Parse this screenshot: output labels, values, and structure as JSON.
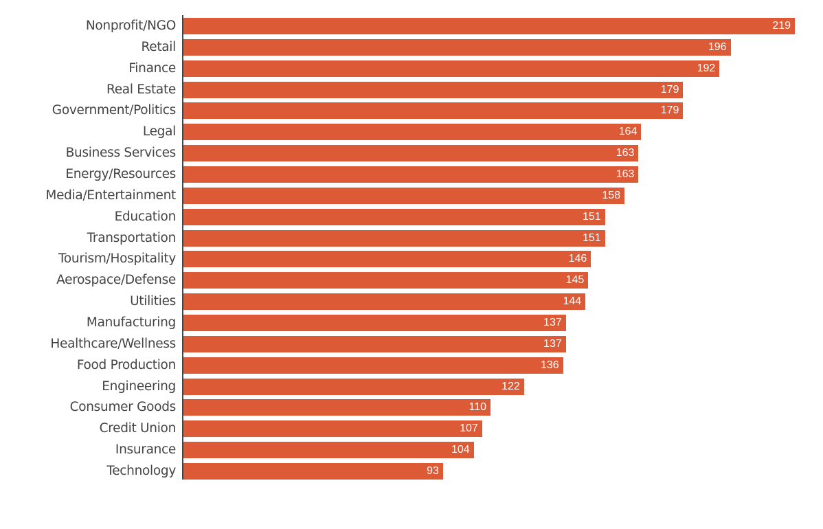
{
  "colors": {
    "bar": "#dd5a37",
    "axis": "#444444",
    "label": "#444444",
    "value_text": "#ffffff"
  },
  "chart_data": {
    "type": "bar",
    "orientation": "horizontal",
    "title": "",
    "xlabel": "",
    "ylabel": "",
    "categories": [
      "Nonprofit/NGO",
      "Retail",
      "Finance",
      "Real Estate",
      "Government/Politics",
      "Legal",
      "Business Services",
      "Energy/Resources",
      "Media/Entertainment",
      "Education",
      "Transportation",
      "Tourism/Hospitality",
      "Aerospace/Defense",
      "Utilities",
      "Manufacturing",
      "Healthcare/Wellness",
      "Food Production",
      "Engineering",
      "Consumer Goods",
      "Credit Union",
      "Insurance",
      "Technology"
    ],
    "values": [
      219,
      196,
      192,
      179,
      179,
      164,
      163,
      163,
      158,
      151,
      151,
      146,
      145,
      144,
      137,
      137,
      136,
      122,
      110,
      107,
      104,
      93
    ],
    "xlim": [
      0,
      219
    ],
    "grid": false,
    "legend": null,
    "data_labels": true
  }
}
